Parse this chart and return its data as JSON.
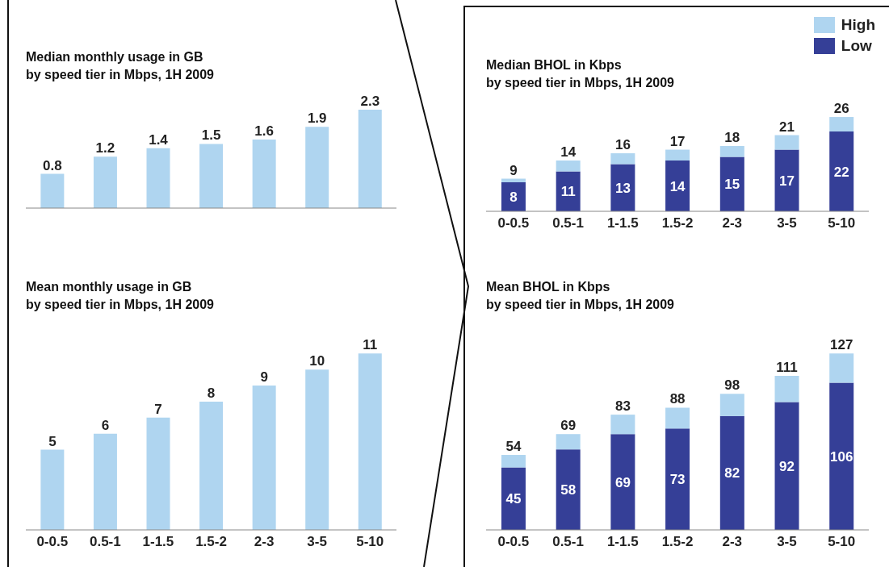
{
  "chart_data": [
    {
      "type": "bar",
      "title": "Median monthly usage in GB\nby speed tier in Mbps, 1H 2009",
      "categories": [
        null,
        null,
        null,
        null,
        null,
        null,
        null
      ],
      "tick_labels": false,
      "values": [
        0.8,
        1.2,
        1.4,
        1.5,
        1.6,
        1.9,
        2.3
      ],
      "color": "#afd5f0",
      "data_labels": true
    },
    {
      "type": "bar",
      "title": "Median BHOL in Kbps\nby speed tier in Mbps, 1H 2009",
      "categories": [
        "0-0.5",
        "0.5-1",
        "1-1.5",
        "1.5-2",
        "2-3",
        "3-5",
        "5-10"
      ],
      "stacked": true,
      "legend": "top right",
      "series": [
        {
          "name": "Low",
          "color": "#353f97",
          "values": [
            8,
            11,
            13,
            14,
            15,
            17,
            22
          ],
          "value_labels": [
            "8",
            "11",
            "13",
            "14",
            "15",
            "17",
            "22"
          ]
        },
        {
          "name": "High",
          "color": "#afd5f0",
          "values": [
            1,
            3,
            3,
            3,
            3,
            4,
            4
          ]
        }
      ],
      "totals": [
        "9",
        "14",
        "16",
        "17",
        "18",
        "21",
        "26"
      ]
    },
    {
      "type": "bar",
      "title": "Mean monthly usage in GB\nby speed tier in Mbps, 1H 2009",
      "categories": [
        "0-0.5",
        "0.5-1",
        "1-1.5",
        "1.5-2",
        "2-3",
        "3-5",
        "5-10"
      ],
      "values": [
        5,
        6,
        7,
        8,
        9,
        10,
        11
      ],
      "color": "#afd5f0",
      "data_labels": true
    },
    {
      "type": "bar",
      "title": "Mean BHOL in Kbps\nby speed tier in Mbps, 1H 2009",
      "categories": [
        "0-0.5",
        "0.5-1",
        "1-1.5",
        "1.5-2",
        "2-3",
        "3-5",
        "5-10"
      ],
      "stacked": true,
      "series": [
        {
          "color": "#353f97",
          "values": [
            45,
            58,
            69,
            73,
            82,
            92,
            106
          ],
          "value_labels": [
            "45",
            "58",
            "69",
            "73",
            "82",
            "92",
            "106"
          ]
        },
        {
          "color": "#afd5f0",
          "values": [
            9,
            11,
            14,
            15,
            16,
            19,
            21
          ]
        }
      ],
      "totals": [
        "54",
        "69",
        "83",
        "88",
        "98",
        "111",
        "127"
      ]
    }
  ]
}
